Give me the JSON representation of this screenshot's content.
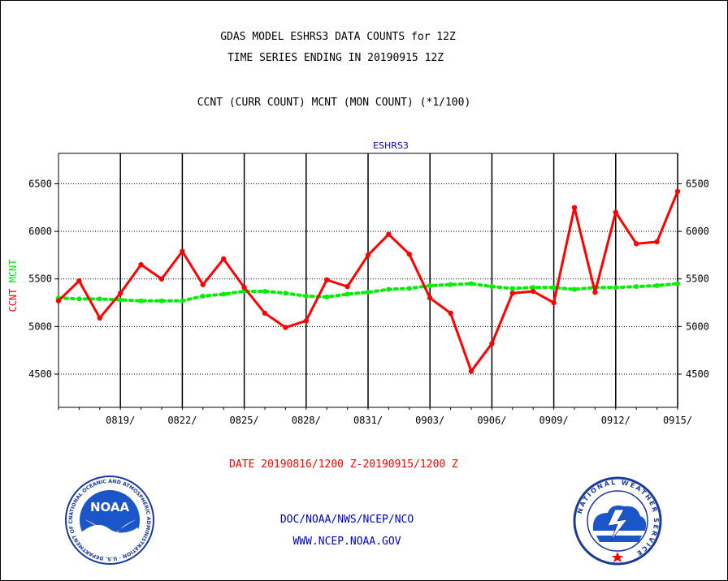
{
  "header": {
    "title_line1": "GDAS MODEL ESHRS3 DATA COUNTS for 12Z",
    "title_line2": "TIME SERIES ENDING IN 20190915 12Z",
    "subtitle": "CCNT (CURR COUNT) MCNT (MON COUNT) (*1/100)"
  },
  "footer": {
    "date_range": "DATE 20190816/1200 Z-20190915/1200 Z",
    "agency": "DOC/NOAA/NWS/NCEP/NCO",
    "website": "WWW.NCEP.NOAA.GOV"
  },
  "logos": {
    "noaa_text": "NOAA",
    "noaa_ring": "NATIONAL OCEANIC AND ATMOSPHERIC ADMINISTRATION · U.S. DEPARTMENT OF COMMERCE",
    "nws_ring": "NATIONAL WEATHER SERVICE"
  },
  "colors": {
    "ccnt": "#ff0000",
    "mcnt": "#00ee00",
    "title_blue": "#0000cc",
    "footer_red": "#ff0000"
  },
  "chart_data": {
    "type": "line",
    "title": "ESHRS3",
    "xlabel": "",
    "ylabel_series": [
      "CCNT",
      "MCNT"
    ],
    "x_tick_labels": [
      "0819/",
      "0822/",
      "0825/",
      "0828/",
      "0831/",
      "0903/",
      "0906/",
      "0909/",
      "0912/",
      "0915/"
    ],
    "x_start_day": 0,
    "x_end_day": 30,
    "y_tick_labels": [
      "4500",
      "5000",
      "5500",
      "6000",
      "6500"
    ],
    "y_ticks": [
      4500,
      5000,
      5500,
      6000,
      6500
    ],
    "ylim": [
      4150,
      6820
    ],
    "grid": true,
    "series": [
      {
        "name": "CCNT",
        "values": [
          5270,
          5480,
          5090,
          5350,
          5650,
          5500,
          5790,
          5440,
          5710,
          5410,
          5140,
          4990,
          5060,
          5490,
          5420,
          5750,
          5970,
          5760,
          5300,
          5140,
          4530,
          4820,
          5350,
          5370,
          5250,
          6250,
          5360,
          6200,
          5870,
          5890,
          6420
        ]
      },
      {
        "name": "MCNT",
        "values": [
          5300,
          5290,
          5290,
          5280,
          5270,
          5270,
          5270,
          5320,
          5340,
          5370,
          5370,
          5350,
          5320,
          5310,
          5340,
          5360,
          5390,
          5400,
          5430,
          5440,
          5450,
          5420,
          5400,
          5410,
          5410,
          5390,
          5410,
          5410,
          5420,
          5430,
          5450
        ]
      }
    ]
  }
}
